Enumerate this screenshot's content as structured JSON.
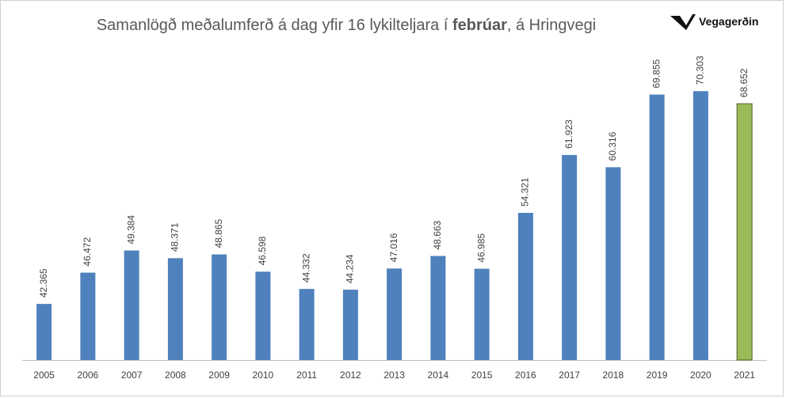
{
  "chart_data": {
    "type": "bar",
    "title_parts": [
      {
        "text": "Samanlögð meðalumferð á dag yfir 16 lykilteljara í ",
        "bold": false
      },
      {
        "text": "febrúar",
        "bold": true
      },
      {
        "text": ", á Hringvegi",
        "bold": false
      }
    ],
    "logo": "Vegagerðin",
    "categories": [
      "2005",
      "2006",
      "2007",
      "2008",
      "2009",
      "2010",
      "2011",
      "2012",
      "2013",
      "2014",
      "2015",
      "2016",
      "2017",
      "2018",
      "2019",
      "2020",
      "2021"
    ],
    "values": [
      42365,
      46472,
      49384,
      48371,
      48865,
      46598,
      44332,
      44234,
      47016,
      48663,
      46985,
      54321,
      61923,
      60316,
      69855,
      70303,
      68652
    ],
    "value_labels": [
      "42.365",
      "46.472",
      "49.384",
      "48.371",
      "48.865",
      "46.598",
      "44.332",
      "44.234",
      "47.016",
      "48.663",
      "46.985",
      "54.321",
      "61.923",
      "60.316",
      "69.855",
      "70.303",
      "68.652"
    ],
    "colors": [
      "#4f81bd",
      "#4f81bd",
      "#4f81bd",
      "#4f81bd",
      "#4f81bd",
      "#4f81bd",
      "#4f81bd",
      "#4f81bd",
      "#4f81bd",
      "#4f81bd",
      "#4f81bd",
      "#4f81bd",
      "#4f81bd",
      "#4f81bd",
      "#4f81bd",
      "#4f81bd",
      "#9bbb59"
    ],
    "ylim": [
      35000,
      75000
    ]
  }
}
